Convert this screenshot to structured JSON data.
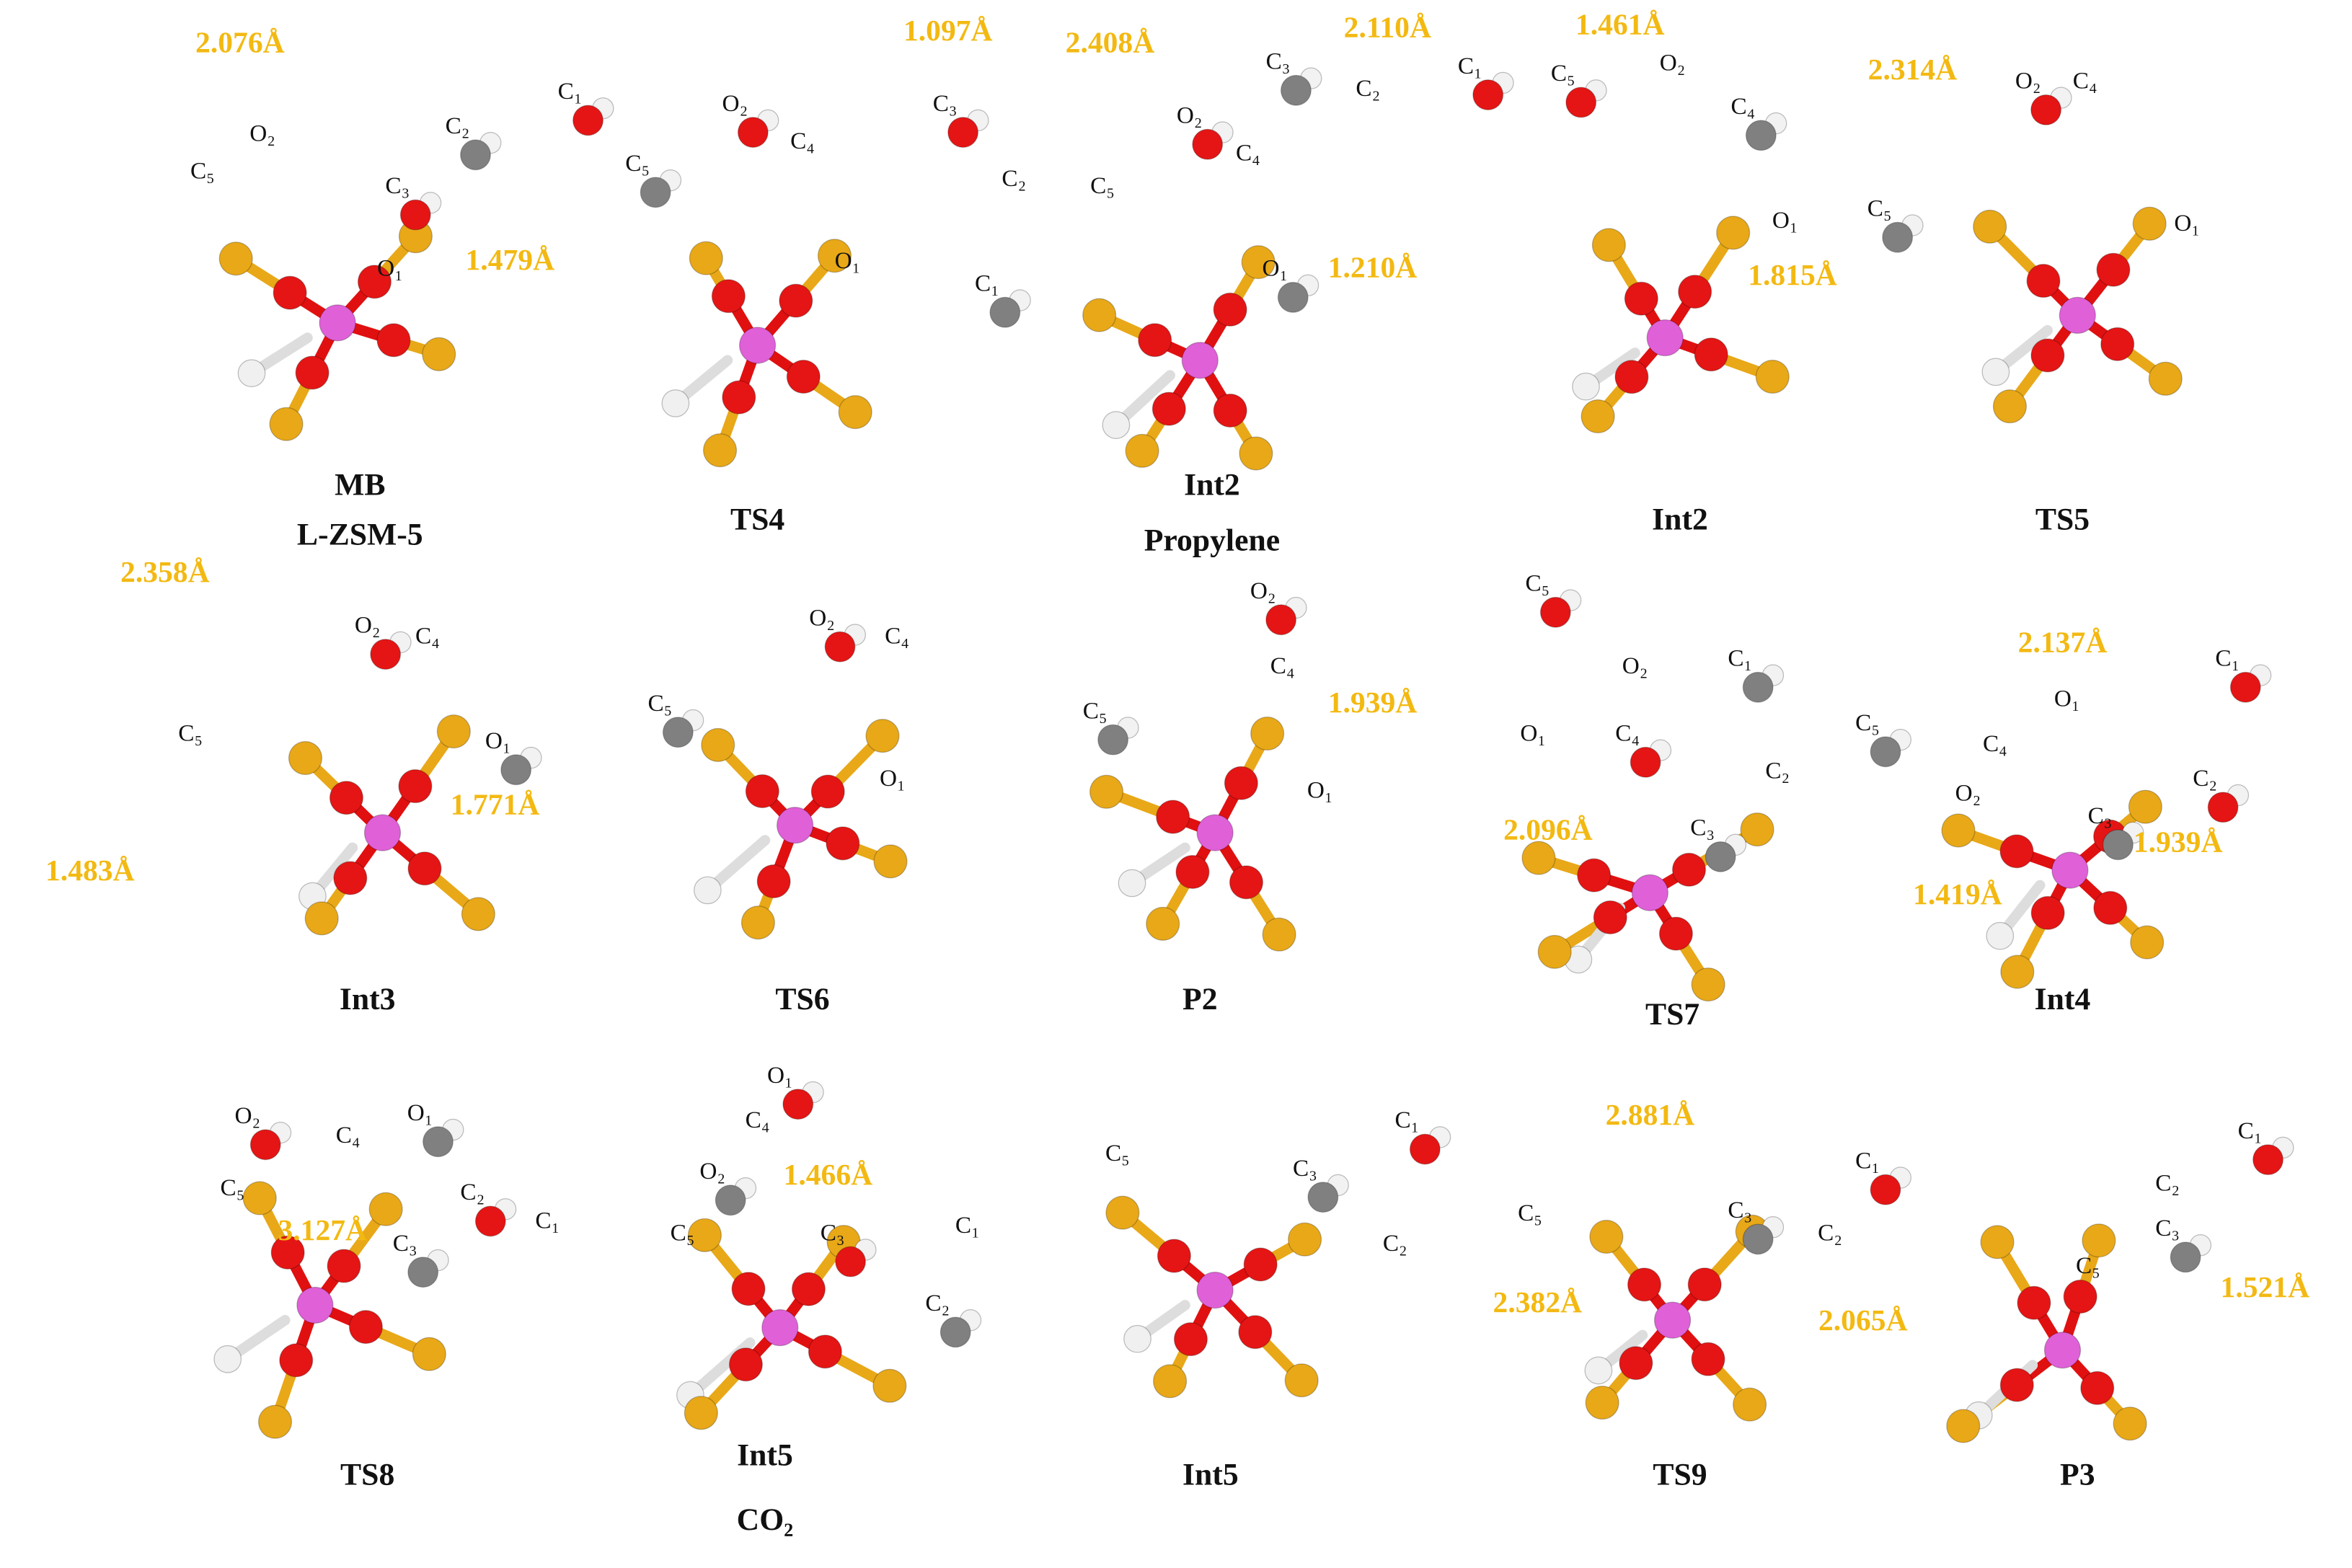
{
  "panels": [
    {
      "caption": [
        "MB",
        "L-ZSM-5"
      ],
      "distances": [
        "2.076Å",
        "1.479Å"
      ],
      "atoms": [
        "C₁",
        "O₂",
        "C₂",
        "C₅",
        "C₃",
        "O₁"
      ]
    },
    {
      "caption": [
        "TS4"
      ],
      "distances": [
        "1.097Å"
      ],
      "atoms": [
        "O₂",
        "C₄",
        "C₅",
        "O₁",
        "C₃",
        "C₂",
        "C₁"
      ]
    },
    {
      "caption": [
        "Int2",
        "Propylene"
      ],
      "distances": [
        "2.408Å",
        "2.110Å",
        "1.210Å"
      ],
      "atoms": [
        "O₂",
        "C₄",
        "C₃",
        "C₂",
        "C₁",
        "C₅",
        "O₁"
      ]
    },
    {
      "caption": [
        "Int2"
      ],
      "distances": [
        "1.461Å",
        "1.815Å"
      ],
      "atoms": [
        "C₅",
        "O₂",
        "C₄",
        "O₁"
      ]
    },
    {
      "caption": [
        "TS5"
      ],
      "distances": [
        "2.314Å"
      ],
      "atoms": [
        "O₂",
        "C₄",
        "C₅",
        "O₁"
      ]
    },
    {
      "caption": [
        "Int3"
      ],
      "distances": [
        "2.358Å",
        "1.771Å",
        "1.483Å"
      ],
      "atoms": [
        "O₂",
        "C₄",
        "O₁",
        "C₅"
      ]
    },
    {
      "caption": [
        "TS6"
      ],
      "distances": [],
      "atoms": [
        "O₂",
        "C₄",
        "C₅",
        "O₁"
      ]
    },
    {
      "caption": [
        "P2"
      ],
      "distances": [
        "1.939Å"
      ],
      "atoms": [
        "O₂",
        "C₄",
        "C₅",
        "O₁"
      ]
    },
    {
      "caption": [
        "TS7"
      ],
      "distances": [
        "2.096Å"
      ],
      "atoms": [
        "C₅",
        "O₂",
        "C₁",
        "O₁",
        "C₄",
        "C₂",
        "C₃"
      ]
    },
    {
      "caption": [
        "Int4"
      ],
      "distances": [
        "2.137Å",
        "1.939Å",
        "1.419Å"
      ],
      "atoms": [
        "C₁",
        "O₁",
        "C₅",
        "C₄",
        "C₂",
        "O₂",
        "C₃"
      ]
    },
    {
      "caption": [
        "TS8"
      ],
      "distances": [
        "3.127Å"
      ],
      "atoms": [
        "O₂",
        "C₄",
        "O₁",
        "C₅",
        "C₂",
        "C₁",
        "C₃"
      ]
    },
    {
      "caption": [
        "Int5",
        "CO₂"
      ],
      "distances": [
        "1.466Å"
      ],
      "atoms": [
        "O₁",
        "C₄",
        "O₂",
        "C₅",
        "C₃",
        "C₁",
        "C₂"
      ]
    },
    {
      "caption": [
        "Int5"
      ],
      "distances": [],
      "atoms": [
        "C₁",
        "C₅",
        "C₃",
        "C₂"
      ]
    },
    {
      "caption": [
        "TS9"
      ],
      "distances": [
        "2.881Å",
        "2.382Å",
        "2.065Å"
      ],
      "atoms": [
        "C₁",
        "C₅",
        "C₃",
        "C₂"
      ]
    },
    {
      "caption": [
        "P3"
      ],
      "distances": [
        "1.521Å"
      ],
      "atoms": [
        "C₁",
        "C₂",
        "C₃",
        "C₅"
      ]
    }
  ]
}
